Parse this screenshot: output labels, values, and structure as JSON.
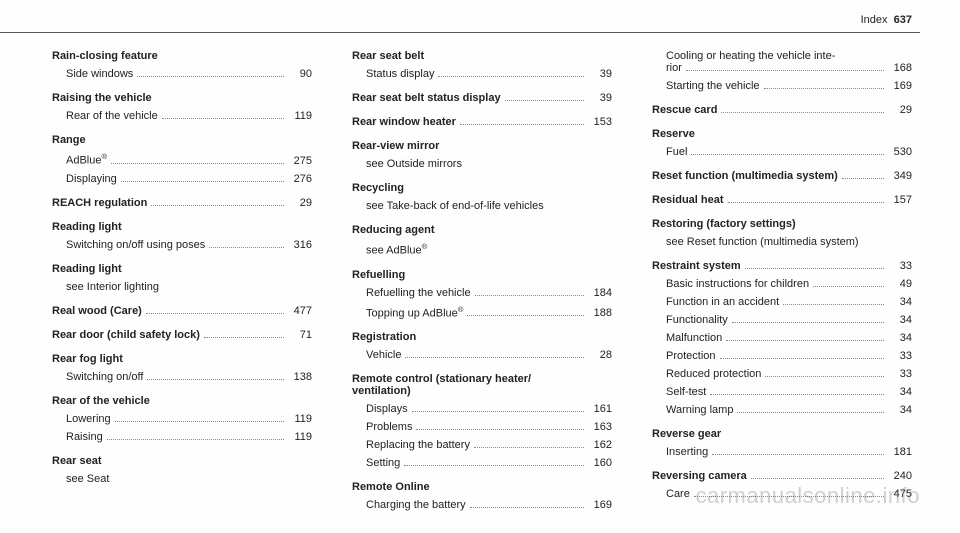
{
  "header": {
    "label": "Index",
    "page": "637"
  },
  "columns": [
    [
      {
        "t": "Rain-closing feature",
        "bold": true
      },
      {
        "t": "Side windows",
        "sub": true,
        "p": "90"
      },
      {
        "t": "Raising the vehicle",
        "bold": true,
        "gap": true
      },
      {
        "t": "Rear of the vehicle",
        "sub": true,
        "p": "119"
      },
      {
        "t": "Range",
        "bold": true,
        "gap": true
      },
      {
        "t": "AdBlue®",
        "sub": true,
        "p": "275",
        "sup": true
      },
      {
        "t": "Displaying",
        "sub": true,
        "p": "276"
      },
      {
        "t": "REACH regulation",
        "bold": true,
        "p": "29",
        "gap": true
      },
      {
        "t": "Reading light",
        "bold": true,
        "gap": true
      },
      {
        "t": "Switching on/off using poses",
        "sub": true,
        "p": "316"
      },
      {
        "t": "Reading light",
        "bold": true,
        "gap": true
      },
      {
        "t": "see Interior lighting",
        "see": true
      },
      {
        "t": "Real wood (Care)",
        "bold": true,
        "p": "477",
        "gap": true
      },
      {
        "t": "Rear door (child safety lock)",
        "bold": true,
        "p": "71",
        "gap": true
      },
      {
        "t": "Rear fog light",
        "bold": true,
        "gap": true
      },
      {
        "t": "Switching on/off",
        "sub": true,
        "p": "138"
      },
      {
        "t": "Rear of the vehicle",
        "bold": true,
        "gap": true
      },
      {
        "t": "Lowering",
        "sub": true,
        "p": "119"
      },
      {
        "t": "Raising",
        "sub": true,
        "p": "119"
      },
      {
        "t": "Rear seat",
        "bold": true,
        "gap": true
      },
      {
        "t": "see Seat",
        "see": true
      }
    ],
    [
      {
        "t": "Rear seat belt",
        "bold": true
      },
      {
        "t": "Status display",
        "sub": true,
        "p": "39"
      },
      {
        "t": "Rear seat belt status display",
        "bold": true,
        "p": "39",
        "gap": true
      },
      {
        "t": "Rear window heater",
        "bold": true,
        "p": "153",
        "gap": true
      },
      {
        "t": "Rear-view mirror",
        "bold": true,
        "gap": true
      },
      {
        "t": "see Outside mirrors",
        "see": true
      },
      {
        "t": "Recycling",
        "bold": true,
        "gap": true
      },
      {
        "t": "see Take-back of end-of-life vehicles",
        "see": true
      },
      {
        "t": "Reducing agent",
        "bold": true,
        "gap": true
      },
      {
        "t": "see AdBlue®",
        "see": true,
        "sup": true
      },
      {
        "t": "Refuelling",
        "bold": true,
        "gap": true
      },
      {
        "t": "Refuelling the vehicle",
        "sub": true,
        "p": "184"
      },
      {
        "t": "Topping up AdBlue®",
        "sub": true,
        "p": "188",
        "sup": true
      },
      {
        "t": "Registration",
        "bold": true,
        "gap": true
      },
      {
        "t": "Vehicle",
        "sub": true,
        "p": "28"
      },
      {
        "t": "Remote control (stationary heater/\nventilation)",
        "bold": true,
        "gap": true,
        "multi": true
      },
      {
        "t": "Displays",
        "sub": true,
        "p": "161"
      },
      {
        "t": "Problems",
        "sub": true,
        "p": "163"
      },
      {
        "t": "Replacing the battery",
        "sub": true,
        "p": "162"
      },
      {
        "t": "Setting",
        "sub": true,
        "p": "160"
      },
      {
        "t": "Remote Online",
        "bold": true,
        "gap": true
      },
      {
        "t": "Charging the battery",
        "sub": true,
        "p": "169"
      }
    ],
    [
      {
        "t": "Cooling or heating the vehicle inte-\nrior",
        "sub": true,
        "p": "168",
        "multi": true
      },
      {
        "t": "Starting the vehicle",
        "sub": true,
        "p": "169"
      },
      {
        "t": "Rescue card",
        "bold": true,
        "p": "29",
        "gap": true
      },
      {
        "t": "Reserve",
        "bold": true,
        "gap": true
      },
      {
        "t": "Fuel",
        "sub": true,
        "p": "530"
      },
      {
        "t": "Reset function (multimedia system)",
        "bold": true,
        "p": "349",
        "gap": true
      },
      {
        "t": "Residual heat",
        "bold": true,
        "p": "157",
        "gap": true
      },
      {
        "t": "Restoring (factory settings)",
        "bold": true,
        "gap": true
      },
      {
        "t": "see Reset function (multimedia system)",
        "see": true
      },
      {
        "t": "Restraint system",
        "bold": true,
        "p": "33",
        "gap": true
      },
      {
        "t": "Basic instructions for children",
        "sub": true,
        "p": "49"
      },
      {
        "t": "Function in an accident",
        "sub": true,
        "p": "34"
      },
      {
        "t": "Functionality",
        "sub": true,
        "p": "34"
      },
      {
        "t": "Malfunction",
        "sub": true,
        "p": "34"
      },
      {
        "t": "Protection",
        "sub": true,
        "p": "33"
      },
      {
        "t": "Reduced protection",
        "sub": true,
        "p": "33"
      },
      {
        "t": "Self-test",
        "sub": true,
        "p": "34"
      },
      {
        "t": "Warning lamp",
        "sub": true,
        "p": "34"
      },
      {
        "t": "Reverse gear",
        "bold": true,
        "gap": true
      },
      {
        "t": "Inserting",
        "sub": true,
        "p": "181"
      },
      {
        "t": "Reversing camera",
        "bold": true,
        "p": "240",
        "gap": true
      },
      {
        "t": "Care",
        "sub": true,
        "p": "475"
      }
    ]
  ],
  "watermark": "carmanualsonline.info"
}
